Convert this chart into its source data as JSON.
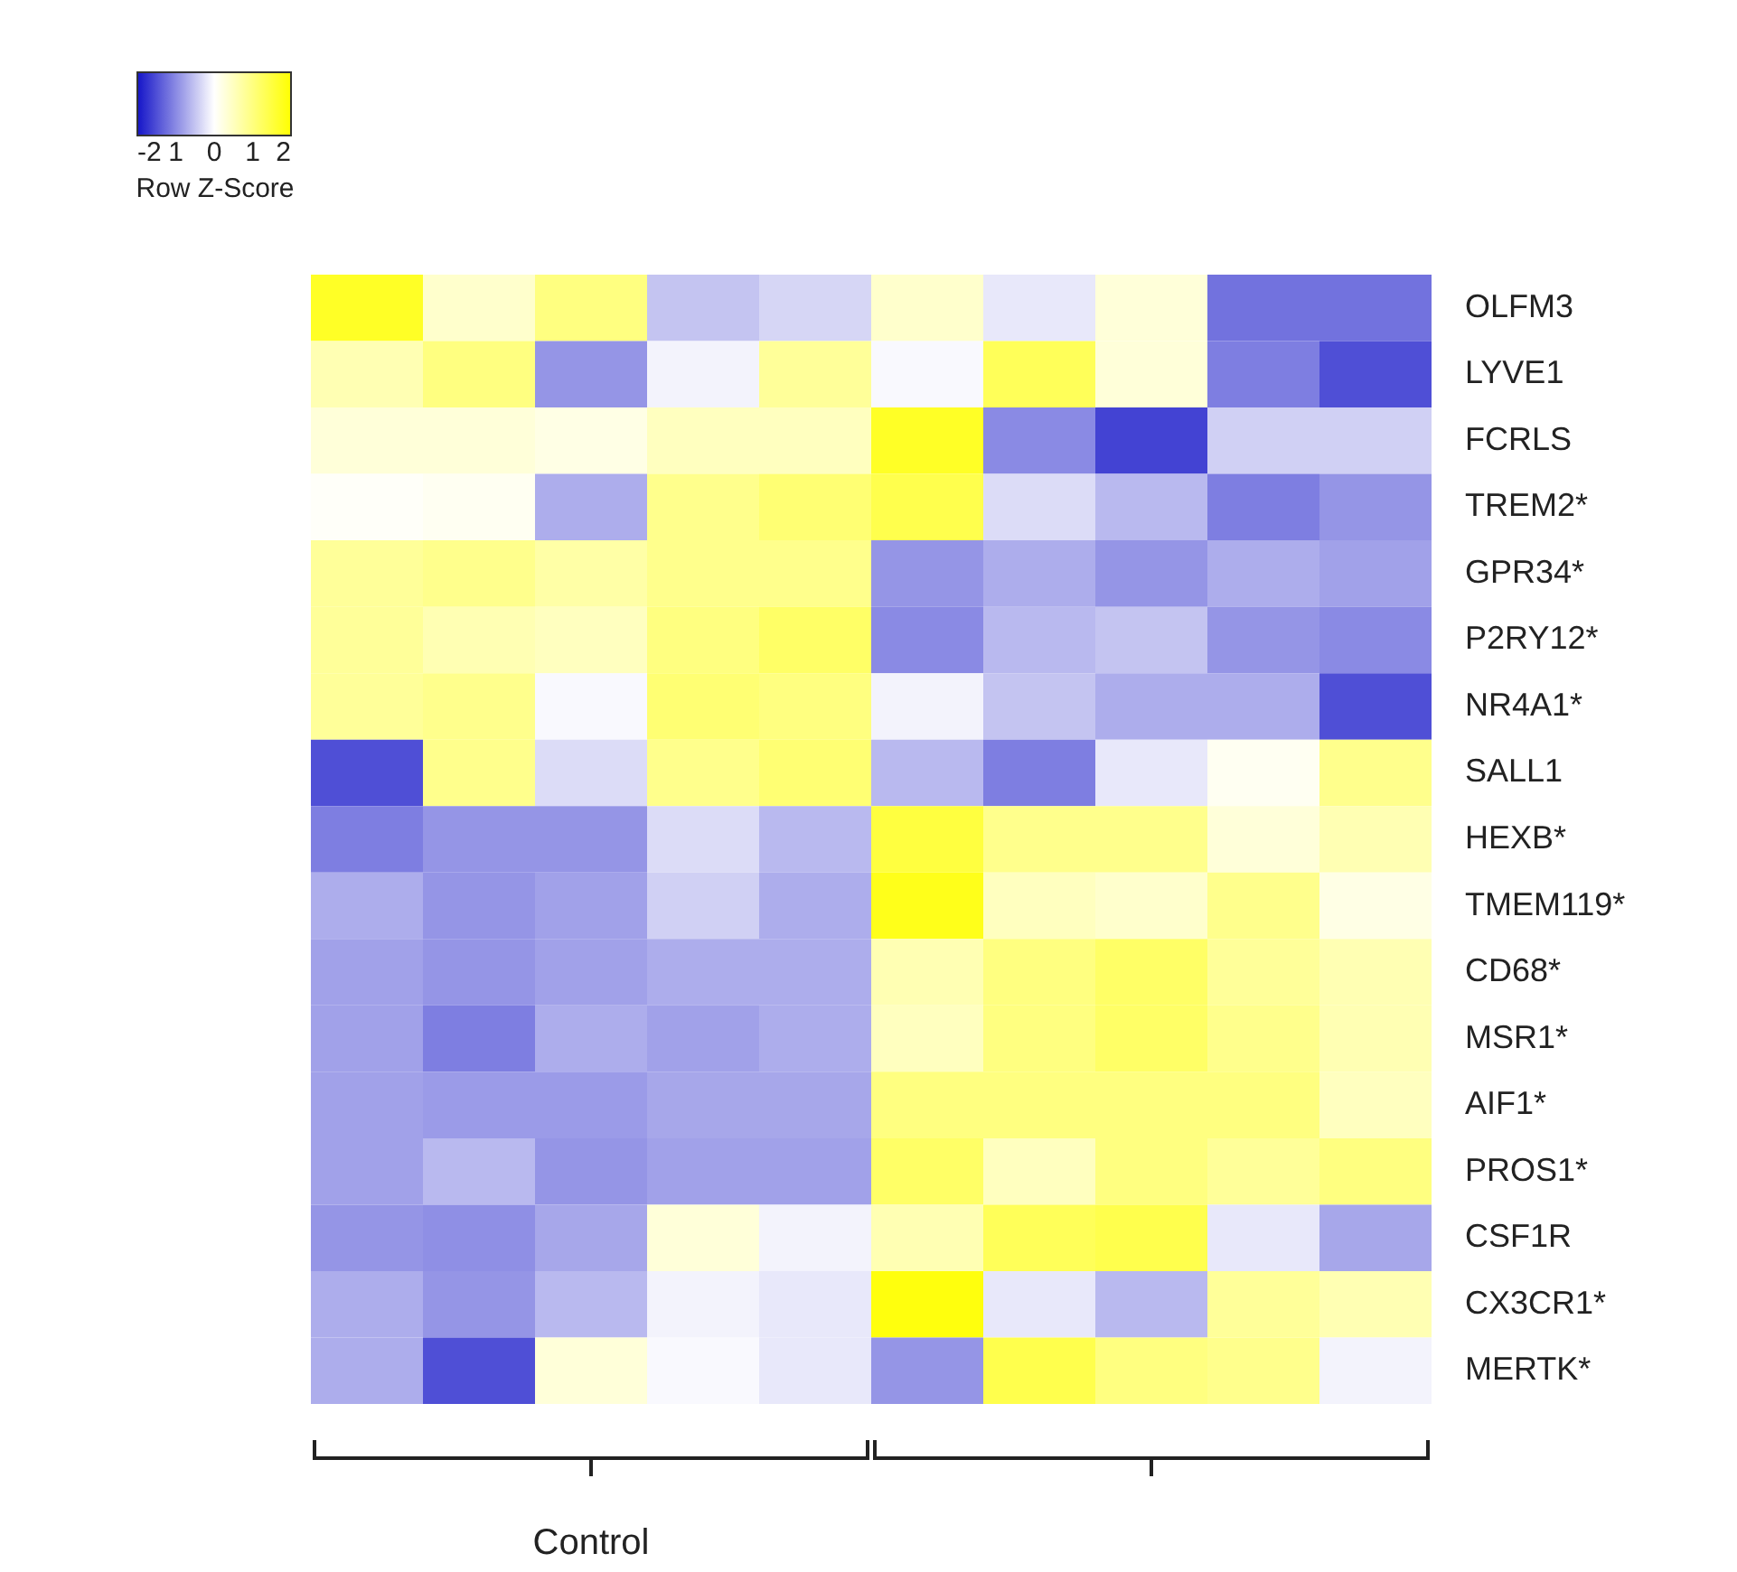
{
  "chart_data": {
    "type": "heatmap",
    "categories": [
      null,
      null,
      null,
      null,
      null,
      null,
      null,
      null,
      null,
      null
    ],
    "y_categories": [
      "OLFM3",
      "LYVE1",
      "FCRLS",
      "TREM2*",
      "GPR34*",
      "P2RY12*",
      "NR4A1*",
      "SALL1",
      "HEXB*",
      "TMEM119*",
      "CD68*",
      "MSR1*",
      "AIF1*",
      "PROS1*",
      "CSF1R",
      "CX3CR1*",
      "MERTK*"
    ],
    "cells": [
      [
        1.7,
        0.4,
        1.0,
        -0.5,
        -0.35,
        0.4,
        -0.2,
        0.3,
        -1.2,
        -1.2
      ],
      [
        0.6,
        1.0,
        -0.9,
        -0.1,
        0.8,
        -0.05,
        1.3,
        0.3,
        -1.1,
        -1.5
      ],
      [
        0.3,
        0.3,
        0.2,
        0.5,
        0.5,
        1.7,
        -1.0,
        -1.6,
        -0.4,
        -0.4
      ],
      [
        0.05,
        0.1,
        -0.7,
        0.9,
        1.1,
        1.4,
        -0.3,
        -0.6,
        -1.1,
        -0.9
      ],
      [
        0.8,
        0.9,
        0.7,
        0.9,
        0.9,
        -0.9,
        -0.7,
        -0.9,
        -0.7,
        -0.8
      ],
      [
        0.8,
        0.6,
        0.5,
        1.0,
        1.2,
        -1.0,
        -0.6,
        -0.5,
        -0.9,
        -1.0
      ],
      [
        0.8,
        0.9,
        -0.05,
        1.1,
        1.0,
        -0.1,
        -0.5,
        -0.7,
        -0.7,
        -1.5
      ],
      [
        -1.5,
        0.9,
        -0.3,
        0.9,
        1.1,
        -0.6,
        -1.1,
        -0.2,
        0.1,
        0.9
      ],
      [
        -1.1,
        -0.9,
        -0.9,
        -0.3,
        -0.6,
        1.5,
        0.9,
        0.9,
        0.3,
        0.6
      ],
      [
        -0.7,
        -0.9,
        -0.8,
        -0.4,
        -0.7,
        1.8,
        0.5,
        0.4,
        0.9,
        0.2
      ],
      [
        -0.8,
        -0.9,
        -0.8,
        -0.7,
        -0.7,
        0.6,
        1.0,
        1.2,
        0.8,
        0.6
      ],
      [
        -0.8,
        -1.1,
        -0.7,
        -0.8,
        -0.7,
        0.5,
        1.0,
        1.2,
        0.9,
        0.6
      ],
      [
        -0.8,
        -0.85,
        -0.85,
        -0.75,
        -0.75,
        1.0,
        1.0,
        1.0,
        1.0,
        0.5
      ],
      [
        -0.8,
        -0.6,
        -0.9,
        -0.8,
        -0.8,
        1.2,
        0.5,
        1.0,
        0.8,
        1.0
      ],
      [
        -0.9,
        -0.95,
        -0.75,
        0.3,
        -0.1,
        0.6,
        1.3,
        1.4,
        -0.2,
        -0.75
      ],
      [
        -0.7,
        -0.9,
        -0.6,
        -0.1,
        -0.2,
        1.9,
        -0.2,
        -0.6,
        0.8,
        0.6
      ],
      [
        -0.7,
        -1.5,
        0.3,
        -0.05,
        -0.2,
        -0.9,
        1.4,
        1.0,
        0.9,
        -0.1
      ]
    ],
    "clabel": "Row Z-Score",
    "clim": [
      -2,
      2
    ],
    "cticks": [
      -2,
      {
        "value": -1,
        "label": "1"
      },
      0,
      1,
      2
    ],
    "tick_labels": "y",
    "annotations": [
      "Control"
    ]
  }
}
